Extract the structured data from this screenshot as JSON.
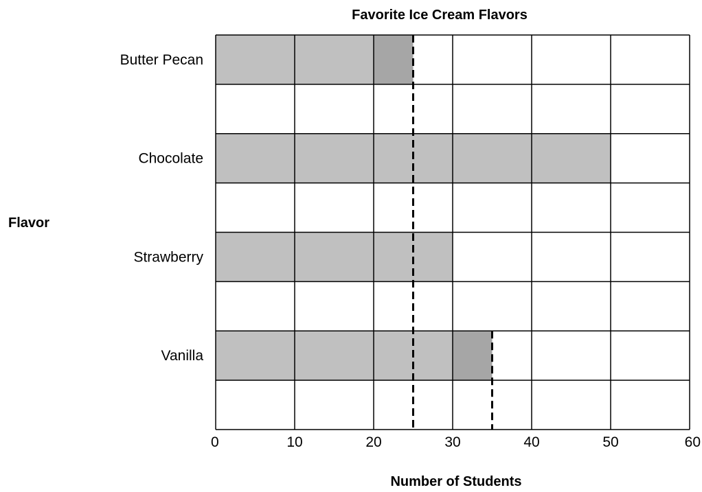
{
  "chart_data": {
    "type": "bar",
    "orientation": "horizontal",
    "title": "Favorite Ice Cream Flavors",
    "xlabel": "Number of Students",
    "ylabel": "Flavor",
    "categories": [
      "Butter Pecan",
      "Chocolate",
      "Strawberry",
      "Vanilla"
    ],
    "values": [
      25,
      50,
      30,
      35
    ],
    "xlim": [
      0,
      60
    ],
    "xticks": [
      0,
      10,
      20,
      30,
      40,
      50,
      60
    ],
    "grid": true,
    "dashed_lines": [
      25,
      35
    ],
    "colors": {
      "bar": "#c0c0c0",
      "bar_partial": "#a6a6a6",
      "grid": "#000000"
    }
  }
}
